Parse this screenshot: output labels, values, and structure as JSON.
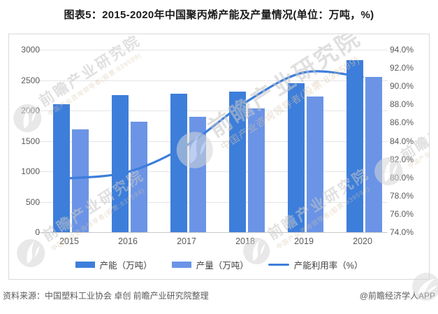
{
  "title": "图表5：2015-2020年中国聚丙烯产能及产量情况(单位：万吨，%)",
  "footer": {
    "source": "资料来源：中国塑料工业协会 卓创 前瞻产业研究院整理",
    "credit": "@前瞻经济学人APP"
  },
  "watermark": {
    "brand": "前瞻产业研究院",
    "tagline": "中国产业咨询领导者(股票:839599)"
  },
  "colors": {
    "capacity_bar": "#3d7edb",
    "production_bar": "#6b94e6",
    "utilization_line": "#3d7edb",
    "grid": "#e4e4e4",
    "axis_line": "#c9c9c9",
    "axis_text": "#595959",
    "card_border": "#d9d9d9",
    "watermark_gray": "#c7c7c7"
  },
  "chart_data": {
    "type": "bar+line combo",
    "categories": [
      "2015",
      "2016",
      "2017",
      "2018",
      "2019",
      "2020"
    ],
    "series": [
      {
        "name": "产能（万吨）",
        "type": "bar",
        "axis": "left",
        "color": "#3d7edb",
        "values": [
          2100,
          2250,
          2280,
          2310,
          2450,
          2830
        ]
      },
      {
        "name": "产量（万吨）",
        "type": "bar",
        "axis": "left",
        "color": "#6b94e6",
        "values": [
          1690,
          1820,
          1900,
          2030,
          2230,
          2550
        ]
      },
      {
        "name": "产能利用率（%）",
        "type": "line",
        "axis": "right",
        "color": "#3d7edb",
        "values": [
          79.9,
          80.6,
          83.5,
          88.2,
          91.5,
          91.0
        ]
      }
    ],
    "left_axis": {
      "min": 0,
      "max": 3000,
      "step": 500,
      "ticks": [
        "3000",
        "2500",
        "2000",
        "1500",
        "1000",
        "500",
        "0"
      ]
    },
    "right_axis": {
      "min": 74,
      "max": 94,
      "step": 2,
      "ticks": [
        "94.0%",
        "92.0%",
        "90.0%",
        "88.0%",
        "86.0%",
        "84.0%",
        "82.0%",
        "80.0%",
        "78.0%",
        "76.0%",
        "74.0%"
      ]
    },
    "grid": true,
    "legend_position": "bottom"
  }
}
